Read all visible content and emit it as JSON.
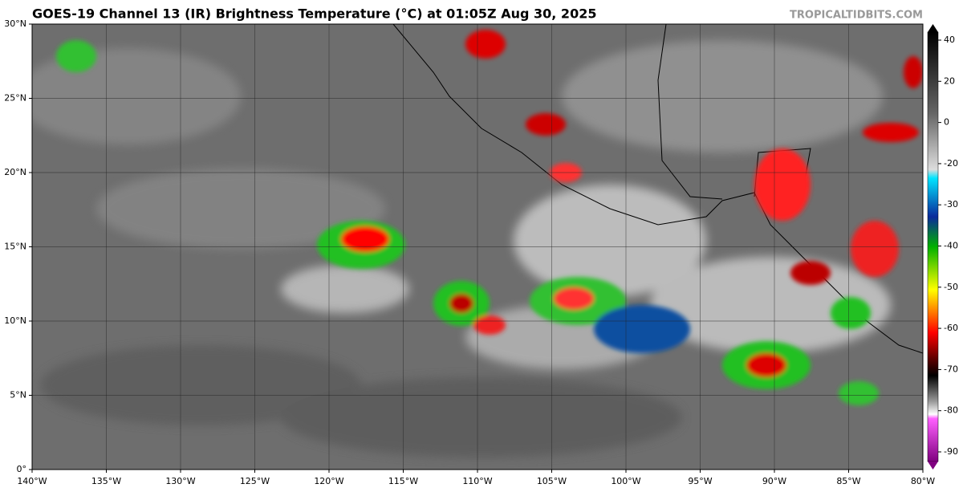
{
  "header": {
    "title": "GOES-19 Channel 13 (IR) Brightness Temperature (°C) at 01:05Z Aug 30, 2025",
    "watermark": "TROPICALTIDBITS.COM"
  },
  "map": {
    "lon_range": [
      -140,
      -80
    ],
    "lat_range": [
      0,
      30
    ],
    "lon_ticks": [
      {
        "value": -140,
        "label": "140°W"
      },
      {
        "value": -135,
        "label": "135°W"
      },
      {
        "value": -130,
        "label": "130°W"
      },
      {
        "value": -125,
        "label": "125°W"
      },
      {
        "value": -120,
        "label": "120°W"
      },
      {
        "value": -115,
        "label": "115°W"
      },
      {
        "value": -110,
        "label": "110°W"
      },
      {
        "value": -105,
        "label": "105°W"
      },
      {
        "value": -100,
        "label": "100°W"
      },
      {
        "value": -95,
        "label": "95°W"
      },
      {
        "value": -90,
        "label": "90°W"
      },
      {
        "value": -85,
        "label": "85°W"
      },
      {
        "value": -80,
        "label": "80°W"
      }
    ],
    "lat_ticks": [
      {
        "value": 0,
        "label": "0°"
      },
      {
        "value": 5,
        "label": "5°N"
      },
      {
        "value": 10,
        "label": "10°N"
      },
      {
        "value": 15,
        "label": "15°N"
      },
      {
        "value": 20,
        "label": "20°N"
      },
      {
        "value": 25,
        "label": "25°N"
      },
      {
        "value": 30,
        "label": "30°N"
      }
    ]
  },
  "colorbar": {
    "ticks": [
      40,
      20,
      0,
      -20,
      -30,
      -40,
      -50,
      -60,
      -70,
      -80,
      -90
    ]
  }
}
